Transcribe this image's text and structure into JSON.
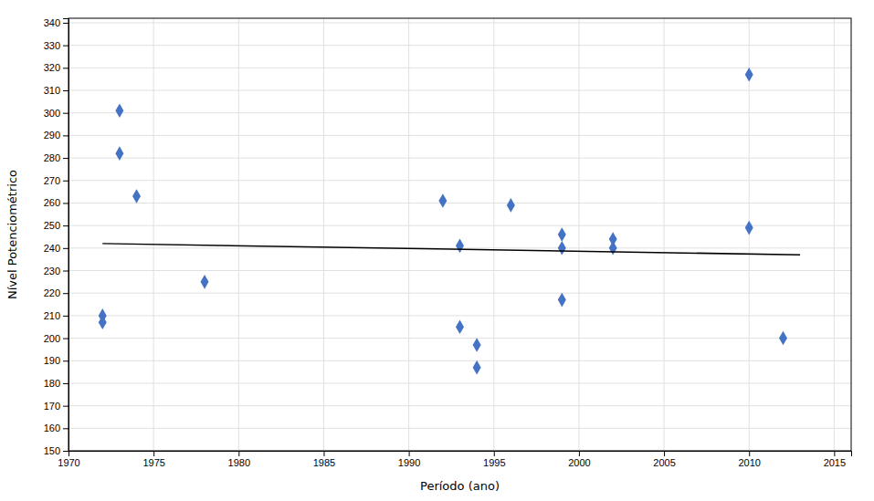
{
  "chart_data": {
    "type": "scatter",
    "xlabel": "Período (ano)",
    "ylabel": "Nível Potenciométrico",
    "series": [
      {
        "type": "scatter",
        "color": "#4472C4",
        "marker": "diamond",
        "x": [
          1972,
          1972,
          1973,
          1973,
          1974,
          1978,
          1992,
          1993,
          1993,
          1994,
          1994,
          1996,
          1999,
          1999,
          1999,
          2002,
          2002,
          2010,
          2010,
          2012
        ],
        "values": [
          207,
          210,
          301,
          282,
          263,
          225,
          261,
          205,
          241,
          187,
          197,
          259,
          246,
          240,
          217,
          244,
          240,
          317,
          249,
          200
        ]
      },
      {
        "type": "line",
        "color": "#000000",
        "line_style": "solid",
        "x": [
          1972,
          2013
        ],
        "values": [
          242,
          237
        ]
      }
    ],
    "xlim": [
      1970,
      2016
    ],
    "ylim": [
      150,
      342
    ],
    "xticks": [
      1970,
      1975,
      1980,
      1985,
      1990,
      1995,
      2000,
      2005,
      2010,
      2015
    ],
    "yticks": [
      150,
      160,
      170,
      180,
      190,
      200,
      210,
      220,
      230,
      240,
      250,
      260,
      270,
      280,
      290,
      300,
      310,
      320,
      330,
      340
    ],
    "grid": true
  }
}
